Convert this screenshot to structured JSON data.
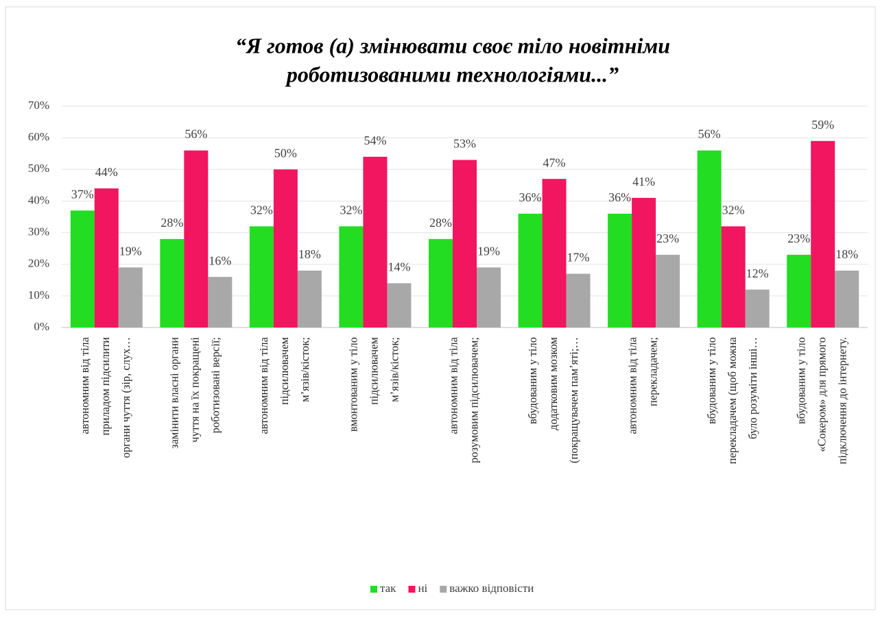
{
  "chart_data": {
    "type": "bar",
    "title": [
      "“Я готов (а) змінювати своє тіло новітніми",
      "роботизованими технологіями...”"
    ],
    "categories": [
      [
        "автономним від тіла",
        "приладом підсилити",
        "органи чуття (зір, слух…"
      ],
      [
        "замінити власні органи",
        "чуття на їх покращені",
        "роботизовані версії;"
      ],
      [
        "автономним від тіла",
        "підсилювачем",
        "м’язів/кісток;"
      ],
      [
        "вмонтованим у тіло",
        "підсилювачем",
        "м’язів/кісток;"
      ],
      [
        "автономним від тіла",
        "розумовим підсилювачем;"
      ],
      [
        "вбудованим у тіло",
        "додатковим мозком",
        "(покращувачем пам’яті;…"
      ],
      [
        "автономним від тіла",
        "перекладачем;"
      ],
      [
        "вбудованим у тіло",
        "перекладачем (щоб можна",
        "було розуміти інші…"
      ],
      [
        "вбудованим у тіло",
        "«Сокером» для прямого",
        "підключення до інтернету."
      ]
    ],
    "series": [
      {
        "name": "так",
        "color": "#22dd22",
        "values": [
          37,
          28,
          32,
          32,
          28,
          36,
          36,
          56,
          23
        ],
        "value_labels": [
          "37%",
          "28%",
          "32%",
          "32%",
          "28%",
          "36%",
          "36%",
          "56%",
          "23%"
        ]
      },
      {
        "name": "ні",
        "color": "#f2155f",
        "values": [
          44,
          56,
          50,
          54,
          53,
          47,
          41,
          32,
          59
        ],
        "value_labels": [
          "44%",
          "56%",
          "50%",
          "54%",
          "53%",
          "47%",
          "41%",
          "32%",
          "59%"
        ]
      },
      {
        "name": "важко відповісти",
        "color": "#a8a8a8",
        "values": [
          19,
          16,
          18,
          14,
          19,
          17,
          23,
          12,
          18
        ],
        "value_labels": [
          "19%",
          "16%",
          "18%",
          "14%",
          "19%",
          "17%",
          "23%",
          "12%",
          "18%"
        ]
      }
    ],
    "ylim": [
      0,
      70
    ],
    "yticks": [
      {
        "value": 0,
        "label": "0%"
      },
      {
        "value": 10,
        "label": "10%"
      },
      {
        "value": 20,
        "label": "20%"
      },
      {
        "value": 30,
        "label": "30%"
      },
      {
        "value": 40,
        "label": "40%"
      },
      {
        "value": 50,
        "label": "50%"
      },
      {
        "value": 60,
        "label": "60%"
      },
      {
        "value": 70,
        "label": "70%"
      }
    ],
    "grid": true,
    "legend": "bottom"
  }
}
